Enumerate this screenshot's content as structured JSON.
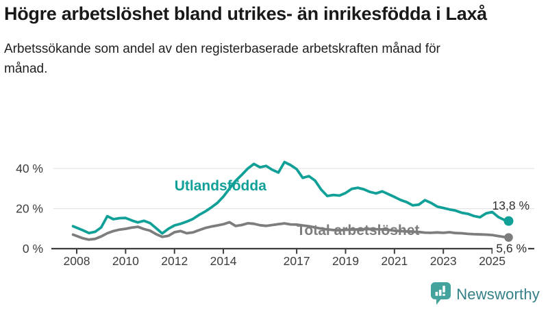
{
  "header": {
    "title": "Högre arbetslöshet bland utrikes- än inrikesfödda i Laxå",
    "subtitle": "Arbetssökande som andel av den registerbaserade arbetskraften månad för månad."
  },
  "footer": {
    "brand": "Newsworthy",
    "logo_icon": "bar-chart-speech-bubble-icon",
    "brand_text_color": "#337f87",
    "logo_bubble_color": "#44a49d"
  },
  "chart_data": {
    "type": "line",
    "grid": "horizontal-only",
    "colors": {
      "axis": "#3c3c3c",
      "gridline": "#e3e3e3",
      "tick_text": "#3c3c3c",
      "end_label_text": "#2e2e2e"
    },
    "x_axis": {
      "ticks": [
        2008,
        2010,
        2012,
        2014,
        2017,
        2019,
        2021,
        2023,
        2025
      ],
      "tick_labels": [
        "2008",
        "2010",
        "2012",
        "2014",
        "2017",
        "2019",
        "2021",
        "2023",
        "2025"
      ],
      "range": [
        2007.85,
        2025.9
      ]
    },
    "y_axis": {
      "ticks": [
        0,
        20,
        40
      ],
      "tick_labels": [
        "0 %",
        "20 %",
        "40 %"
      ],
      "unit": "%",
      "range": [
        0,
        52
      ]
    },
    "x": [
      2007.85,
      2008.25,
      2008.5,
      2008.75,
      2009.0,
      2009.25,
      2009.5,
      2009.75,
      2010.0,
      2010.25,
      2010.5,
      2010.75,
      2011.0,
      2011.25,
      2011.5,
      2011.75,
      2012.0,
      2012.25,
      2012.5,
      2012.75,
      2013.0,
      2013.25,
      2013.5,
      2013.75,
      2014.0,
      2014.25,
      2014.5,
      2014.75,
      2015.0,
      2015.25,
      2015.5,
      2015.75,
      2016.0,
      2016.25,
      2016.5,
      2016.75,
      2017.0,
      2017.25,
      2017.5,
      2017.75,
      2018.0,
      2018.25,
      2018.5,
      2018.75,
      2019.0,
      2019.25,
      2019.5,
      2019.75,
      2020.0,
      2020.25,
      2020.5,
      2020.75,
      2021.0,
      2021.25,
      2021.5,
      2021.75,
      2022.0,
      2022.25,
      2022.5,
      2022.75,
      2023.0,
      2023.25,
      2023.5,
      2023.75,
      2024.0,
      2024.25,
      2024.5,
      2024.75,
      2025.0,
      2025.25,
      2025.5,
      2025.67
    ],
    "series": [
      {
        "name": "Utlandsfödda",
        "color": "#11a097",
        "end_label": "13,8 %",
        "end_value": 13.8,
        "label_x": 2012.0,
        "label_v": 29.1,
        "values": [
          11.2,
          9.2,
          7.8,
          8.4,
          10.6,
          16.2,
          14.7,
          15.2,
          15.3,
          14.1,
          13.1,
          13.9,
          12.8,
          10.2,
          7.6,
          9.9,
          11.6,
          12.4,
          13.5,
          14.8,
          16.8,
          18.5,
          20.5,
          22.8,
          26.0,
          30.0,
          33.8,
          36.8,
          40.0,
          42.3,
          40.6,
          41.3,
          39.4,
          38.0,
          43.2,
          41.7,
          39.7,
          35.3,
          36.2,
          34.0,
          29.5,
          26.3,
          26.8,
          26.5,
          27.8,
          29.8,
          30.4,
          29.6,
          28.3,
          27.6,
          28.6,
          27.2,
          25.8,
          24.3,
          23.2,
          21.6,
          22.0,
          24.2,
          22.8,
          21.0,
          20.3,
          19.6,
          19.0,
          17.9,
          17.4,
          16.3,
          15.7,
          17.6,
          18.3,
          15.8,
          14.3,
          13.8
        ]
      },
      {
        "name": "Total arbetslöshet",
        "color": "#7d7d7d",
        "end_label": "5,6 %",
        "end_value": 5.6,
        "label_x": 2017.0,
        "label_v": 6.8,
        "values": [
          7.0,
          5.2,
          4.5,
          4.9,
          6.1,
          7.7,
          8.8,
          9.5,
          9.9,
          10.5,
          10.9,
          9.8,
          9.0,
          7.2,
          5.9,
          6.4,
          8.2,
          8.8,
          7.7,
          8.1,
          9.2,
          10.3,
          11.0,
          11.6,
          12.2,
          13.2,
          11.3,
          11.8,
          12.7,
          12.4,
          11.7,
          11.4,
          11.8,
          12.2,
          12.6,
          12.1,
          12.0,
          11.6,
          11.2,
          10.6,
          10.0,
          9.6,
          9.3,
          9.2,
          9.4,
          9.5,
          9.6,
          9.7,
          9.8,
          9.7,
          9.6,
          9.4,
          9.0,
          8.8,
          8.6,
          8.4,
          8.3,
          8.0,
          7.9,
          8.1,
          7.9,
          8.2,
          7.8,
          7.7,
          7.4,
          7.2,
          7.1,
          7.0,
          6.8,
          6.3,
          5.8,
          5.6
        ]
      }
    ]
  }
}
